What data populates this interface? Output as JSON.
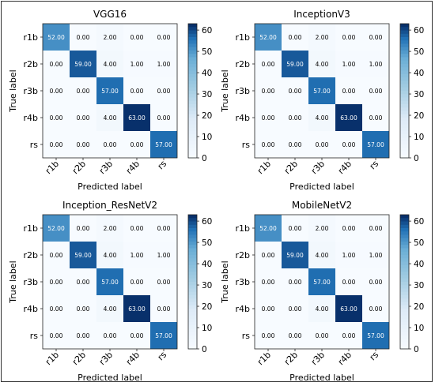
{
  "chart_data": [
    {
      "type": "heatmap",
      "title": "VGG16",
      "xlabel": "Predicted label",
      "ylabel": "True label",
      "categories": [
        "r1b",
        "r2b",
        "r3b",
        "r4b",
        "rs"
      ],
      "matrix": [
        [
          "52.00",
          "0.00",
          "2.00",
          "0.00",
          "0.00"
        ],
        [
          "0.00",
          "59.00",
          "4.00",
          "1.00",
          "1.00"
        ],
        [
          "0.00",
          "0.00",
          "57.00",
          "0.00",
          "0.00"
        ],
        [
          "0.00",
          "0.00",
          "4.00",
          "63.00",
          "0.00"
        ],
        [
          "0.00",
          "0.00",
          "0.00",
          "0.00",
          "57.00"
        ]
      ],
      "colorbar_ticks": [
        "0",
        "10",
        "20",
        "30",
        "40",
        "50",
        "60"
      ],
      "colorbar_range": [
        0,
        63
      ]
    },
    {
      "type": "heatmap",
      "title": "InceptionV3",
      "xlabel": "Predicted label",
      "ylabel": "True label",
      "categories": [
        "r1b",
        "r2b",
        "r3b",
        "r4b",
        "rs"
      ],
      "matrix": [
        [
          "52.00",
          "0.00",
          "2.00",
          "0.00",
          "0.00"
        ],
        [
          "0.00",
          "59.00",
          "4.00",
          "1.00",
          "1.00"
        ],
        [
          "0.00",
          "0.00",
          "57.00",
          "0.00",
          "0.00"
        ],
        [
          "0.00",
          "0.00",
          "4.00",
          "63.00",
          "0.00"
        ],
        [
          "0.00",
          "0.00",
          "0.00",
          "0.00",
          "57.00"
        ]
      ],
      "colorbar_ticks": [
        "0",
        "10",
        "20",
        "30",
        "40",
        "50",
        "60"
      ],
      "colorbar_range": [
        0,
        63
      ]
    },
    {
      "type": "heatmap",
      "title": "Inception_ResNetV2",
      "xlabel": "Predicted label",
      "ylabel": "True label",
      "categories": [
        "r1b",
        "r2b",
        "r3b",
        "r4b",
        "rs"
      ],
      "matrix": [
        [
          "52.00",
          "0.00",
          "2.00",
          "0.00",
          "0.00"
        ],
        [
          "0.00",
          "59.00",
          "4.00",
          "1.00",
          "1.00"
        ],
        [
          "0.00",
          "0.00",
          "57.00",
          "0.00",
          "0.00"
        ],
        [
          "0.00",
          "0.00",
          "4.00",
          "63.00",
          "0.00"
        ],
        [
          "0.00",
          "0.00",
          "0.00",
          "0.00",
          "57.00"
        ]
      ],
      "colorbar_ticks": [
        "0",
        "10",
        "20",
        "30",
        "40",
        "50",
        "60"
      ],
      "colorbar_range": [
        0,
        63
      ]
    },
    {
      "type": "heatmap",
      "title": "MobileNetV2",
      "xlabel": "Predicted label",
      "ylabel": "True label",
      "categories": [
        "r1b",
        "r2b",
        "r3b",
        "r4b",
        "rs"
      ],
      "matrix": [
        [
          "52.00",
          "0.00",
          "2.00",
          "0.00",
          "0.00"
        ],
        [
          "0.00",
          "59.00",
          "4.00",
          "1.00",
          "1.00"
        ],
        [
          "0.00",
          "0.00",
          "57.00",
          "0.00",
          "0.00"
        ],
        [
          "0.00",
          "0.00",
          "4.00",
          "63.00",
          "0.00"
        ],
        [
          "0.00",
          "0.00",
          "0.00",
          "0.00",
          "57.00"
        ]
      ],
      "colorbar_ticks": [
        "0",
        "10",
        "20",
        "30",
        "40",
        "50",
        "60"
      ],
      "colorbar_range": [
        0,
        63
      ]
    }
  ],
  "colors": {
    "low": "#f7fbff",
    "mid": "#6baed6",
    "high": "#08306b",
    "text_dark": "#000000",
    "text_light": "#ffffff"
  }
}
